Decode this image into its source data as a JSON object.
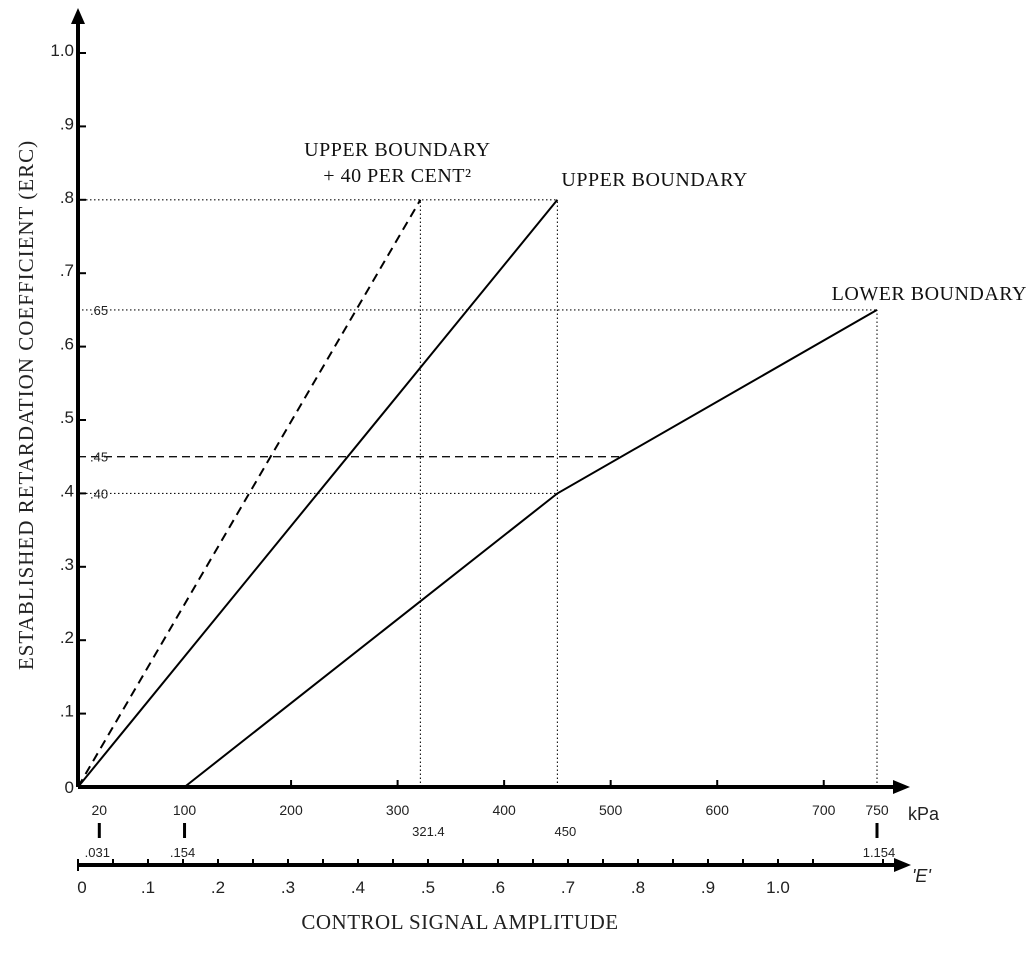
{
  "chart_data": {
    "type": "line",
    "ylabel": "ESTABLISHED RETARDATION COEFFICIENT (ERC)",
    "xlabel": "CONTROL SIGNAL AMPLITUDE",
    "xlim": [
      0,
      790
    ],
    "ylim": [
      0,
      1.07
    ],
    "grid": false,
    "y_ticks": [
      {
        "value": 0,
        "label": "0"
      },
      {
        "value": 0.1,
        "label": ".1"
      },
      {
        "value": 0.2,
        "label": ".2"
      },
      {
        "value": 0.3,
        "label": ".3"
      },
      {
        "value": 0.4,
        "label": ".4"
      },
      {
        "value": 0.5,
        "label": ".5"
      },
      {
        "value": 0.6,
        "label": ".6"
      },
      {
        "value": 0.7,
        "label": ".7"
      },
      {
        "value": 0.8,
        "label": ".8"
      },
      {
        "value": 0.9,
        "label": ".9"
      },
      {
        "value": 1.0,
        "label": "1.0"
      }
    ],
    "x_unit": "kPa",
    "x_ticks": [
      {
        "value": 200,
        "label": "200"
      },
      {
        "value": 300,
        "label": "300"
      },
      {
        "value": 400,
        "label": "400"
      },
      {
        "value": 500,
        "label": "500"
      },
      {
        "value": 600,
        "label": "600"
      },
      {
        "value": 700,
        "label": "700"
      },
      {
        "value": 750,
        "label": "750"
      }
    ],
    "x_top_labels": [
      {
        "value": 20,
        "label": "20"
      },
      {
        "value": 100,
        "label": "100"
      }
    ],
    "x_marked_values": [
      {
        "value": 321.4,
        "label": "321.4"
      },
      {
        "value": 450,
        "label": "450"
      }
    ],
    "break_marks": [
      {
        "value": 20,
        "top": "20",
        "bottom": ".031"
      },
      {
        "value": 100,
        "top": "100",
        "bottom": ".154"
      },
      {
        "value": 750,
        "top": "750",
        "bottom": "1.154"
      }
    ],
    "e_axis": {
      "unit": "'E'",
      "range": [
        0,
        1.22
      ],
      "ticks": [
        {
          "value": 0,
          "label": "0"
        },
        {
          "value": 0.1,
          "label": ".1"
        },
        {
          "value": 0.2,
          "label": ".2"
        },
        {
          "value": 0.3,
          "label": ".3"
        },
        {
          "value": 0.4,
          "label": ".4"
        },
        {
          "value": 0.5,
          "label": ".5"
        },
        {
          "value": 0.6,
          "label": ".6"
        },
        {
          "value": 0.7,
          "label": ".7"
        },
        {
          "value": 0.8,
          "label": ".8"
        },
        {
          "value": 0.9,
          "label": ".9"
        },
        {
          "value": 1.0,
          "label": "1.0"
        }
      ],
      "minor_ticks": [
        0.05,
        0.15,
        0.25,
        0.35,
        0.45,
        0.55,
        0.65,
        0.75,
        0.85,
        0.95,
        1.05,
        1.15
      ]
    },
    "series": [
      {
        "name": "UPPER BOUNDARY + 40 PER CENT²",
        "style": "dashed",
        "points": [
          [
            0,
            0
          ],
          [
            321.4,
            0.8
          ]
        ]
      },
      {
        "name": "UPPER BOUNDARY",
        "style": "solid",
        "points": [
          [
            0,
            0
          ],
          [
            450,
            0.8
          ]
        ]
      },
      {
        "name": "LOWER BOUNDARY",
        "style": "solid",
        "points": [
          [
            100,
            0
          ],
          [
            450,
            0.4
          ],
          [
            750,
            0.65
          ]
        ]
      }
    ],
    "series_labels": [
      {
        "lines": [
          "UPPER BOUNDARY",
          "+ 40 PER CENT²"
        ],
        "anchor": [
          321.4,
          0.8
        ]
      },
      {
        "lines": [
          "UPPER BOUNDARY"
        ],
        "anchor": [
          450,
          0.8
        ]
      },
      {
        "lines": [
          "LOWER BOUNDARY"
        ],
        "anchor": [
          750,
          0.65
        ]
      }
    ],
    "reference_lines": [
      {
        "orientation": "h",
        "y": 0.8,
        "x_to": 450,
        "style": "dotted"
      },
      {
        "orientation": "h",
        "y": 0.65,
        "x_to": 750,
        "style": "dotted",
        "label": ".65"
      },
      {
        "orientation": "h",
        "y": 0.45,
        "x_to": 508,
        "style": "dashed",
        "label": ".45"
      },
      {
        "orientation": "h",
        "y": 0.4,
        "x_to": 450,
        "style": "dotted",
        "label": ".40"
      },
      {
        "orientation": "v",
        "x": 321.4,
        "y_to": 0.8,
        "style": "dotted"
      },
      {
        "orientation": "v",
        "x": 450,
        "y_to": 0.8,
        "style": "dotted"
      },
      {
        "orientation": "v",
        "x": 750,
        "y_to": 0.65,
        "style": "dotted"
      }
    ]
  }
}
